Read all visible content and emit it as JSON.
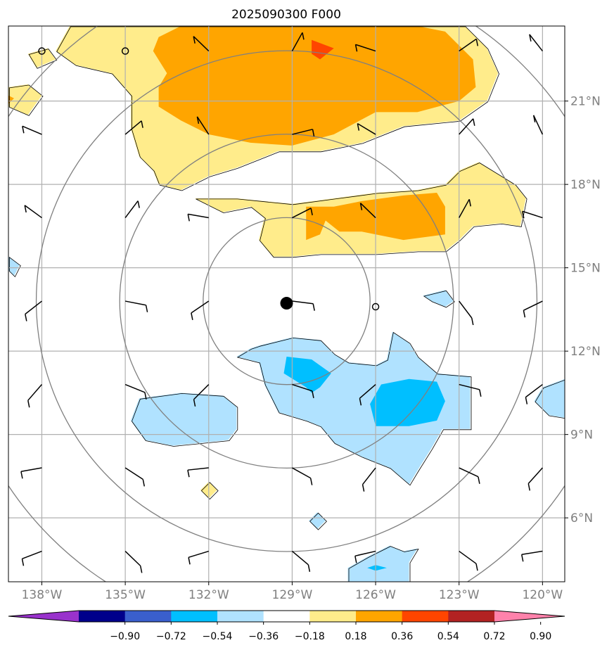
{
  "chart_data": {
    "type": "heatmap",
    "title": "2025090300 F000",
    "x_ticks": [
      "138°W",
      "135°W",
      "132°W",
      "129°W",
      "126°W",
      "123°W",
      "120°W"
    ],
    "y_ticks": [
      "21°N",
      "18°N",
      "15°N",
      "12°N",
      "9°N",
      "6°N"
    ],
    "x_tick_values": [
      -138,
      -135,
      -132,
      -129,
      -126,
      -123,
      -120
    ],
    "y_tick_values": [
      21,
      18,
      15,
      12,
      9,
      6
    ],
    "xlim": [
      -139.2,
      -119.2
    ],
    "ylim": [
      3.7,
      23.7
    ],
    "grid": true,
    "storm_center": {
      "lon": -129.2,
      "lat": 13.8
    },
    "range_rings_deg": [
      3,
      6,
      9,
      12
    ],
    "colorbar": {
      "orientation": "horizontal",
      "extend": "both",
      "ticks": [
        "−0.90",
        "−0.72",
        "−0.54",
        "−0.36",
        "−0.18",
        "0.18",
        "0.36",
        "0.54",
        "0.72",
        "0.90"
      ],
      "colors": [
        "#9932cc",
        "#00008b",
        "#3a5fcd",
        "#00bfff",
        "#b0e2ff",
        "#ffffff",
        "#ffec8b",
        "#ffa500",
        "#ff4500",
        "#b22222",
        "#ff82ab"
      ]
    },
    "fields": [
      {
        "level": 0.18,
        "color": "#ffec8b",
        "regions": [
          [
            [
              -137,
              23.7
            ],
            [
              -134.5,
              23.7
            ],
            [
              -132,
              23.7
            ],
            [
              -129,
              23.7
            ],
            [
              -127,
              23.7
            ],
            [
              -124,
              23.7
            ],
            [
              -122.8,
              23.7
            ],
            [
              -122,
              22.9
            ],
            [
              -121.6,
              22
            ],
            [
              -122,
              21
            ],
            [
              -123,
              20.3
            ],
            [
              -125,
              20.1
            ],
            [
              -126.5,
              19.5
            ],
            [
              -128,
              19.2
            ],
            [
              -129.5,
              19.2
            ],
            [
              -131,
              18.6
            ],
            [
              -132,
              18.3
            ],
            [
              -133,
              17.8
            ],
            [
              -133.8,
              18
            ],
            [
              -134,
              18.5
            ],
            [
              -134.5,
              19
            ],
            [
              -134.8,
              20
            ],
            [
              -134.8,
              21.2
            ],
            [
              -135.5,
              22
            ],
            [
              -136.8,
              22.3
            ],
            [
              -137.5,
              22.8
            ]
          ],
          [
            [
              -132.5,
              17.5
            ],
            [
              -131.5,
              17
            ],
            [
              -130.5,
              17.2
            ],
            [
              -130,
              16.8
            ],
            [
              -130.2,
              16
            ],
            [
              -129.7,
              15.4
            ],
            [
              -129,
              15.4
            ],
            [
              -128,
              15.5
            ],
            [
              -126,
              15.5
            ],
            [
              -124.5,
              15.6
            ],
            [
              -123.5,
              15.6
            ],
            [
              -123,
              16
            ],
            [
              -122.5,
              16.5
            ],
            [
              -121.5,
              16.6
            ],
            [
              -120.8,
              16.5
            ],
            [
              -120.6,
              17.5
            ],
            [
              -121,
              18
            ],
            [
              -122.3,
              18.8
            ],
            [
              -123,
              18.5
            ],
            [
              -123.5,
              18
            ],
            [
              -124.5,
              17.8
            ],
            [
              -126,
              17.7
            ],
            [
              -127.5,
              17.5
            ],
            [
              -129,
              17.3
            ],
            [
              -131,
              17.5
            ]
          ],
          [
            [
              -139.2,
              21.5
            ],
            [
              -138.5,
              21.6
            ],
            [
              -138,
              21.2
            ],
            [
              -138.5,
              20.5
            ],
            [
              -139.2,
              20.8
            ]
          ],
          [
            [
              -138.2,
              22.2
            ],
            [
              -137.5,
              22.5
            ],
            [
              -137.8,
              22.9
            ],
            [
              -138.5,
              22.7
            ]
          ],
          [
            [
              -132.3,
              7
            ],
            [
              -132,
              6.7
            ],
            [
              -131.7,
              7
            ],
            [
              -132,
              7.3
            ]
          ]
        ]
      },
      {
        "level": 0.36,
        "color": "#ffa500",
        "regions": [
          [
            [
              -133,
              23.7
            ],
            [
              -131,
              23.7
            ],
            [
              -129,
              23.7
            ],
            [
              -126.5,
              23.7
            ],
            [
              -124.5,
              23.7
            ],
            [
              -123.5,
              23.5
            ],
            [
              -122.5,
              22.5
            ],
            [
              -122.4,
              21.5
            ],
            [
              -123,
              21
            ],
            [
              -124.5,
              20.6
            ],
            [
              -126,
              20.6
            ],
            [
              -127.5,
              19.8
            ],
            [
              -129,
              19.4
            ],
            [
              -130.5,
              19.5
            ],
            [
              -132,
              19.8
            ],
            [
              -133,
              20.3
            ],
            [
              -133.8,
              20.8
            ],
            [
              -133.8,
              21.5
            ],
            [
              -133.5,
              22
            ],
            [
              -134,
              22.8
            ],
            [
              -133.8,
              23.3
            ]
          ],
          [
            [
              -128.5,
              17.2
            ],
            [
              -127.5,
              17.2
            ],
            [
              -126.5,
              17.4
            ],
            [
              -125,
              17.6
            ],
            [
              -123.8,
              17.7
            ],
            [
              -123.5,
              17.2
            ],
            [
              -123.5,
              16.2
            ],
            [
              -125,
              16
            ],
            [
              -126.5,
              16.3
            ],
            [
              -127.3,
              16.3
            ],
            [
              -127.8,
              16.7
            ],
            [
              -128,
              16.2
            ],
            [
              -128.5,
              16
            ]
          ],
          [
            [
              -139.2,
              21.2
            ],
            [
              -139,
              21.1
            ],
            [
              -139.2,
              20.9
            ]
          ]
        ]
      },
      {
        "level": 0.54,
        "color": "#ff4500",
        "regions": [
          [
            [
              -128.3,
              23.2
            ],
            [
              -127.5,
              22.9
            ],
            [
              -128,
              22.5
            ],
            [
              -128.3,
              22.7
            ]
          ]
        ]
      },
      {
        "level": -0.18,
        "color": "#b0e2ff",
        "regions": [
          [
            [
              -130.2,
              12.2
            ],
            [
              -129,
              12.5
            ],
            [
              -128,
              12.4
            ],
            [
              -127.5,
              11.9
            ],
            [
              -127,
              11.6
            ],
            [
              -126,
              11.5
            ],
            [
              -125.6,
              11.7
            ],
            [
              -125.4,
              12.7
            ],
            [
              -124.8,
              12.3
            ],
            [
              -124.5,
              11.8
            ],
            [
              -123.8,
              11.2
            ],
            [
              -122.6,
              11.1
            ],
            [
              -122.6,
              10
            ],
            [
              -122.6,
              9.2
            ],
            [
              -123.6,
              9.2
            ],
            [
              -124,
              8.5
            ],
            [
              -124.5,
              7.7
            ],
            [
              -124.8,
              7.2
            ],
            [
              -125.5,
              7.8
            ],
            [
              -126.5,
              8.2
            ],
            [
              -127.5,
              8.7
            ],
            [
              -128,
              9.3
            ],
            [
              -128.5,
              9.5
            ],
            [
              -129.5,
              9.8
            ],
            [
              -130,
              10.8
            ],
            [
              -130.2,
              11.6
            ],
            [
              -131,
              11.8
            ],
            [
              -130.5,
              12.1
            ]
          ],
          [
            [
              -134.5,
              10.3
            ],
            [
              -133,
              10.5
            ],
            [
              -131.5,
              10.4
            ],
            [
              -131,
              10
            ],
            [
              -131,
              9.2
            ],
            [
              -131.3,
              8.8
            ],
            [
              -133.3,
              8.6
            ],
            [
              -134.3,
              8.8
            ],
            [
              -134.8,
              9.5
            ]
          ],
          [
            [
              -125.5,
              5
            ],
            [
              -125,
              4.8
            ],
            [
              -124.5,
              4.9
            ],
            [
              -124.8,
              4.4
            ],
            [
              -124.8,
              3.7
            ],
            [
              -127,
              3.7
            ],
            [
              -127,
              4.2
            ],
            [
              -126.3,
              4.6
            ]
          ],
          [
            [
              -124.3,
              14
            ],
            [
              -123.5,
              14.2
            ],
            [
              -123.2,
              13.8
            ],
            [
              -123.5,
              13.6
            ],
            [
              -124,
              13.8
            ]
          ],
          [
            [
              -119.2,
              11
            ],
            [
              -120,
              10.7
            ],
            [
              -120.3,
              10.2
            ],
            [
              -119.8,
              9.7
            ],
            [
              -119.2,
              9.6
            ]
          ],
          [
            [
              -139.2,
              15.4
            ],
            [
              -138.8,
              15.1
            ],
            [
              -139,
              14.7
            ],
            [
              -139.2,
              14.9
            ]
          ],
          [
            [
              -128.1,
              6.2
            ],
            [
              -127.8,
              5.9
            ],
            [
              -128.1,
              5.6
            ],
            [
              -128.4,
              5.9
            ]
          ]
        ]
      },
      {
        "level": -0.36,
        "color": "#00bfff",
        "regions": [
          [
            [
              -129.2,
              11.8
            ],
            [
              -128.3,
              11.7
            ],
            [
              -127.6,
              11.2
            ],
            [
              -128,
              10.7
            ],
            [
              -128.3,
              10.5
            ],
            [
              -128.5,
              10.7
            ],
            [
              -129.3,
              11.2
            ]
          ],
          [
            [
              -125.8,
              10.8
            ],
            [
              -124.8,
              11
            ],
            [
              -123.8,
              10.9
            ],
            [
              -123.5,
              10.2
            ],
            [
              -123.8,
              9.5
            ],
            [
              -124.8,
              9.3
            ],
            [
              -126,
              9.3
            ],
            [
              -126.2,
              10.1
            ]
          ],
          [
            [
              -126,
              4.3
            ],
            [
              -125.6,
              4.2
            ],
            [
              -126,
              4.1
            ],
            [
              -126.3,
              4.2
            ]
          ]
        ]
      }
    ]
  }
}
